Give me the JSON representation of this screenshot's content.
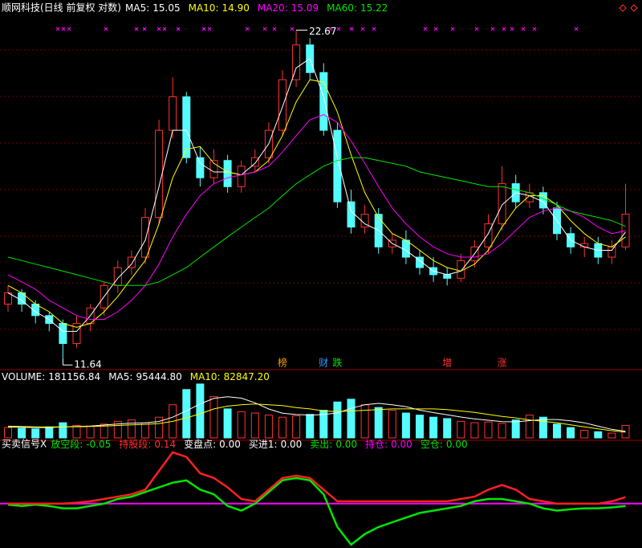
{
  "chart_data": [
    {
      "type": "candlestick",
      "title": "顺网科技(日线 前复权 对数)",
      "title_color": "#ffffff",
      "legend": [
        {
          "name": "MA5:",
          "value": 15.05,
          "color": "#ffffff"
        },
        {
          "name": "MA10:",
          "value": 14.9,
          "label": "14.90",
          "color": "#ffff00"
        },
        {
          "name": "MA20:",
          "value": 15.09,
          "color": "#ff00ff"
        },
        {
          "name": "MA60:",
          "value": 15.22,
          "color": "#00e600"
        }
      ],
      "log": true,
      "ylim": [
        11.4,
        24.1
      ],
      "up_color": "#ff3232",
      "down_color": "#54fcfc",
      "open": [
        13.0,
        13.3,
        13.0,
        12.7,
        12.5,
        12.0,
        12.5,
        12.9,
        13.5,
        14.0,
        14.3,
        15.5,
        18.5,
        19.8,
        17.5,
        16.8,
        17.4,
        16.5,
        17.2,
        17.5,
        18.5,
        20.5,
        22.0,
        20.8,
        18.5,
        16.0,
        15.2,
        15.6,
        14.6,
        14.8,
        14.3,
        14.0,
        13.8,
        13.7,
        14.2,
        14.6,
        15.3,
        16.6,
        16.0,
        16.3,
        15.8,
        15.0,
        14.6,
        14.7,
        14.3,
        14.6
      ],
      "high": [
        13.5,
        13.4,
        13.1,
        12.8,
        12.6,
        12.7,
        13.0,
        13.6,
        14.2,
        14.5,
        15.8,
        18.9,
        20.6,
        20.0,
        17.9,
        17.8,
        17.6,
        17.4,
        17.8,
        18.8,
        20.9,
        22.67,
        22.3,
        21.2,
        18.8,
        16.4,
        15.9,
        15.8,
        15.0,
        15.1,
        14.5,
        14.3,
        14.0,
        14.4,
        14.8,
        15.6,
        17.2,
        16.9,
        16.6,
        16.5,
        16.0,
        15.2,
        14.9,
        14.9,
        14.8,
        16.6
      ],
      "low": [
        12.8,
        12.8,
        12.5,
        12.3,
        11.64,
        11.9,
        12.3,
        12.7,
        13.3,
        13.8,
        14.1,
        15.3,
        18.2,
        17.3,
        16.5,
        16.6,
        16.3,
        16.3,
        17.0,
        17.3,
        18.3,
        20.2,
        20.5,
        18.3,
        15.8,
        15.0,
        15.0,
        14.4,
        14.4,
        14.1,
        13.8,
        13.6,
        13.5,
        13.6,
        14.0,
        14.4,
        15.1,
        15.8,
        15.8,
        15.6,
        14.8,
        14.4,
        14.3,
        14.1,
        14.1,
        14.5
      ],
      "close": [
        13.3,
        13.0,
        12.7,
        12.5,
        12.0,
        12.5,
        12.9,
        13.5,
        14.0,
        14.3,
        15.5,
        18.5,
        19.8,
        17.5,
        16.8,
        17.4,
        16.5,
        17.2,
        17.5,
        18.5,
        20.5,
        22.0,
        20.8,
        18.5,
        16.0,
        15.2,
        15.6,
        14.6,
        14.8,
        14.3,
        14.0,
        13.8,
        13.7,
        14.2,
        14.6,
        15.3,
        16.6,
        16.0,
        16.3,
        15.8,
        15.0,
        14.6,
        14.7,
        14.3,
        14.6,
        15.6
      ],
      "series": [
        {
          "color": "#ffffff",
          "values": [
            13.3,
            13.1,
            12.8,
            12.6,
            12.3,
            12.3,
            12.7,
            13.2,
            13.7,
            14.1,
            14.8,
            16.5,
            18.5,
            18.5,
            17.3,
            17.0,
            17.0,
            16.9,
            17.3,
            18.0,
            19.4,
            21.0,
            21.4,
            19.8,
            17.5,
            15.7,
            15.3,
            15.1,
            14.7,
            14.5,
            14.2,
            13.9,
            13.8,
            13.9,
            14.4,
            15.0,
            15.9,
            16.3,
            16.2,
            16.0,
            15.4,
            14.8,
            14.6,
            14.5,
            14.5,
            15.05
          ]
        },
        {
          "color": "#ffff00",
          "values": [
            13.5,
            13.3,
            13.0,
            12.8,
            12.5,
            12.4,
            12.5,
            12.8,
            13.2,
            13.7,
            14.2,
            15.3,
            16.8,
            17.8,
            17.9,
            17.3,
            17.0,
            16.9,
            17.0,
            17.4,
            18.3,
            19.6,
            20.5,
            20.4,
            19.2,
            17.6,
            16.3,
            15.5,
            15.0,
            14.8,
            14.5,
            14.2,
            14.0,
            13.9,
            14.1,
            14.5,
            15.2,
            15.8,
            16.2,
            16.2,
            15.9,
            15.4,
            15.0,
            14.7,
            14.6,
            14.9
          ]
        },
        {
          "color": "#ff00ff",
          "values": [
            13.8,
            13.6,
            13.4,
            13.1,
            12.9,
            12.7,
            12.6,
            12.6,
            12.8,
            13.1,
            13.5,
            14.1,
            14.9,
            15.6,
            16.2,
            16.6,
            16.8,
            16.9,
            17.0,
            17.2,
            17.7,
            18.3,
            18.9,
            19.1,
            18.8,
            18.1,
            17.3,
            16.5,
            15.8,
            15.3,
            14.9,
            14.6,
            14.4,
            14.3,
            14.3,
            14.4,
            14.7,
            15.1,
            15.5,
            15.7,
            15.8,
            15.7,
            15.5,
            15.2,
            15.0,
            15.09
          ]
        },
        {
          "color": "#00e600",
          "values": [
            14.3,
            14.2,
            14.1,
            14.0,
            13.9,
            13.8,
            13.7,
            13.6,
            13.5,
            13.5,
            13.5,
            13.6,
            13.8,
            14.0,
            14.3,
            14.6,
            14.9,
            15.2,
            15.5,
            15.8,
            16.2,
            16.6,
            16.9,
            17.2,
            17.4,
            17.5,
            17.5,
            17.4,
            17.3,
            17.2,
            17.0,
            16.9,
            16.8,
            16.7,
            16.6,
            16.5,
            16.5,
            16.4,
            16.3,
            16.1,
            15.9,
            15.7,
            15.6,
            15.5,
            15.4,
            15.22
          ]
        }
      ],
      "events": [
        {
          "index": 20,
          "text": "榜",
          "color": "#ff9900"
        },
        {
          "index": 23,
          "text": "财",
          "color": "#3399ff"
        },
        {
          "index": 24,
          "text": "跌",
          "color": "#00e600"
        },
        {
          "index": 32,
          "text": "增",
          "color": "#ff3232"
        },
        {
          "index": 36,
          "text": "涨",
          "color": "#ff3232"
        }
      ]
    },
    {
      "type": "bar",
      "legend": [
        {
          "name": "VOLUME:",
          "value": 181156.84,
          "color": "#ffffff"
        },
        {
          "name": "MA5:",
          "value": 95444.8,
          "label": "95444.80",
          "color": "#ffffff"
        },
        {
          "name": "MA10:",
          "value": 82847.2,
          "label": "82847.20",
          "color": "#ffff00"
        }
      ],
      "ylim": [
        0,
        930000
      ],
      "values": [
        150000,
        140000,
        130000,
        160000,
        220000,
        180000,
        170000,
        200000,
        240000,
        260000,
        220000,
        300000,
        480000,
        700000,
        780000,
        600000,
        420000,
        380000,
        360000,
        330000,
        300000,
        320000,
        340000,
        400000,
        520000,
        560000,
        480000,
        440000,
        400000,
        360000,
        330000,
        300000,
        280000,
        240000,
        220000,
        230000,
        210000,
        260000,
        330000,
        300000,
        200000,
        150000,
        110000,
        90000,
        70000,
        181156.84
      ],
      "series": [
        {
          "color": "#ffffff",
          "values": [
            160000,
            155000,
            150000,
            150000,
            160000,
            166000,
            172000,
            186000,
            202000,
            214000,
            218000,
            238000,
            300000,
            392000,
            492000,
            572000,
            596000,
            576000,
            508000,
            418000,
            358000,
            338000,
            330000,
            338000,
            362000,
            428000,
            480000,
            500000,
            480000,
            452000,
            402000,
            366000,
            334000,
            302000,
            274000,
            256000,
            236000,
            232000,
            250000,
            266000,
            266000,
            248000,
            218000,
            170000,
            124000,
            95444.8
          ]
        },
        {
          "color": "#ffff00",
          "values": [
            170000,
            165000,
            160000,
            158000,
            160000,
            162000,
            165000,
            172000,
            180000,
            190000,
            196000,
            208000,
            240000,
            290000,
            350000,
            420000,
            460000,
            480000,
            490000,
            480000,
            468000,
            440000,
            420000,
            390000,
            380000,
            390000,
            400000,
            410000,
            420000,
            420000,
            420000,
            420000,
            410000,
            390000,
            370000,
            340000,
            310000,
            290000,
            260000,
            240000,
            220000,
            190000,
            160000,
            130000,
            105000,
            82847.2
          ]
        }
      ]
    },
    {
      "type": "line",
      "title": "买卖信号X",
      "title_color": "#ffffff",
      "legend": [
        {
          "name": "放空段:",
          "value": -0.05,
          "color": "#00e600"
        },
        {
          "name": "持股段:",
          "value": 0.14,
          "color": "#ff3232"
        },
        {
          "name": "变盘点:",
          "value": 0,
          "label": "0.00",
          "color": "#ffffff"
        },
        {
          "name": "买进1:",
          "value": 0,
          "label": "0.00",
          "color": "#ffffff"
        },
        {
          "name": "卖出:",
          "value": 0,
          "label": "0.00",
          "color": "#00e600"
        },
        {
          "name": "持仓:",
          "value": 0,
          "label": "0.00",
          "color": "#ff00ff"
        },
        {
          "name": "空仓:",
          "value": 0,
          "label": "0.00",
          "color": "#00e600"
        }
      ],
      "ylim": [
        -0.95,
        1.15
      ],
      "yticks": [
        0
      ],
      "baseline_color": "#ff00ff",
      "series": [
        {
          "color": "#00e600",
          "values": [
            -0.02,
            -0.05,
            -0.02,
            -0.05,
            -0.1,
            -0.1,
            -0.05,
            0.0,
            0.1,
            0.15,
            0.25,
            0.35,
            0.45,
            0.5,
            0.3,
            0.2,
            -0.05,
            -0.15,
            0.0,
            0.25,
            0.5,
            0.55,
            0.5,
            0.2,
            -0.5,
            -0.88,
            -0.65,
            -0.5,
            -0.4,
            -0.3,
            -0.2,
            -0.15,
            -0.1,
            -0.05,
            0.05,
            0.1,
            0.1,
            0.05,
            0.0,
            -0.1,
            -0.15,
            -0.12,
            -0.1,
            -0.1,
            -0.08,
            -0.05
          ]
        },
        {
          "color": "#ff2020",
          "values": [
            0,
            0,
            0,
            0,
            0,
            0.02,
            0.05,
            0.1,
            0.15,
            0.2,
            0.3,
            0.7,
            1.1,
            1.0,
            0.65,
            0.55,
            0.35,
            0.1,
            0.05,
            0.3,
            0.55,
            0.6,
            0.55,
            0.3,
            0.05,
            0.05,
            0.05,
            0.05,
            0.05,
            0.05,
            0.05,
            0.05,
            0.05,
            0.1,
            0.15,
            0.3,
            0.4,
            0.3,
            0.1,
            0.05,
            0.0,
            0.0,
            0.0,
            0.0,
            0.05,
            0.14
          ]
        }
      ]
    }
  ]
}
